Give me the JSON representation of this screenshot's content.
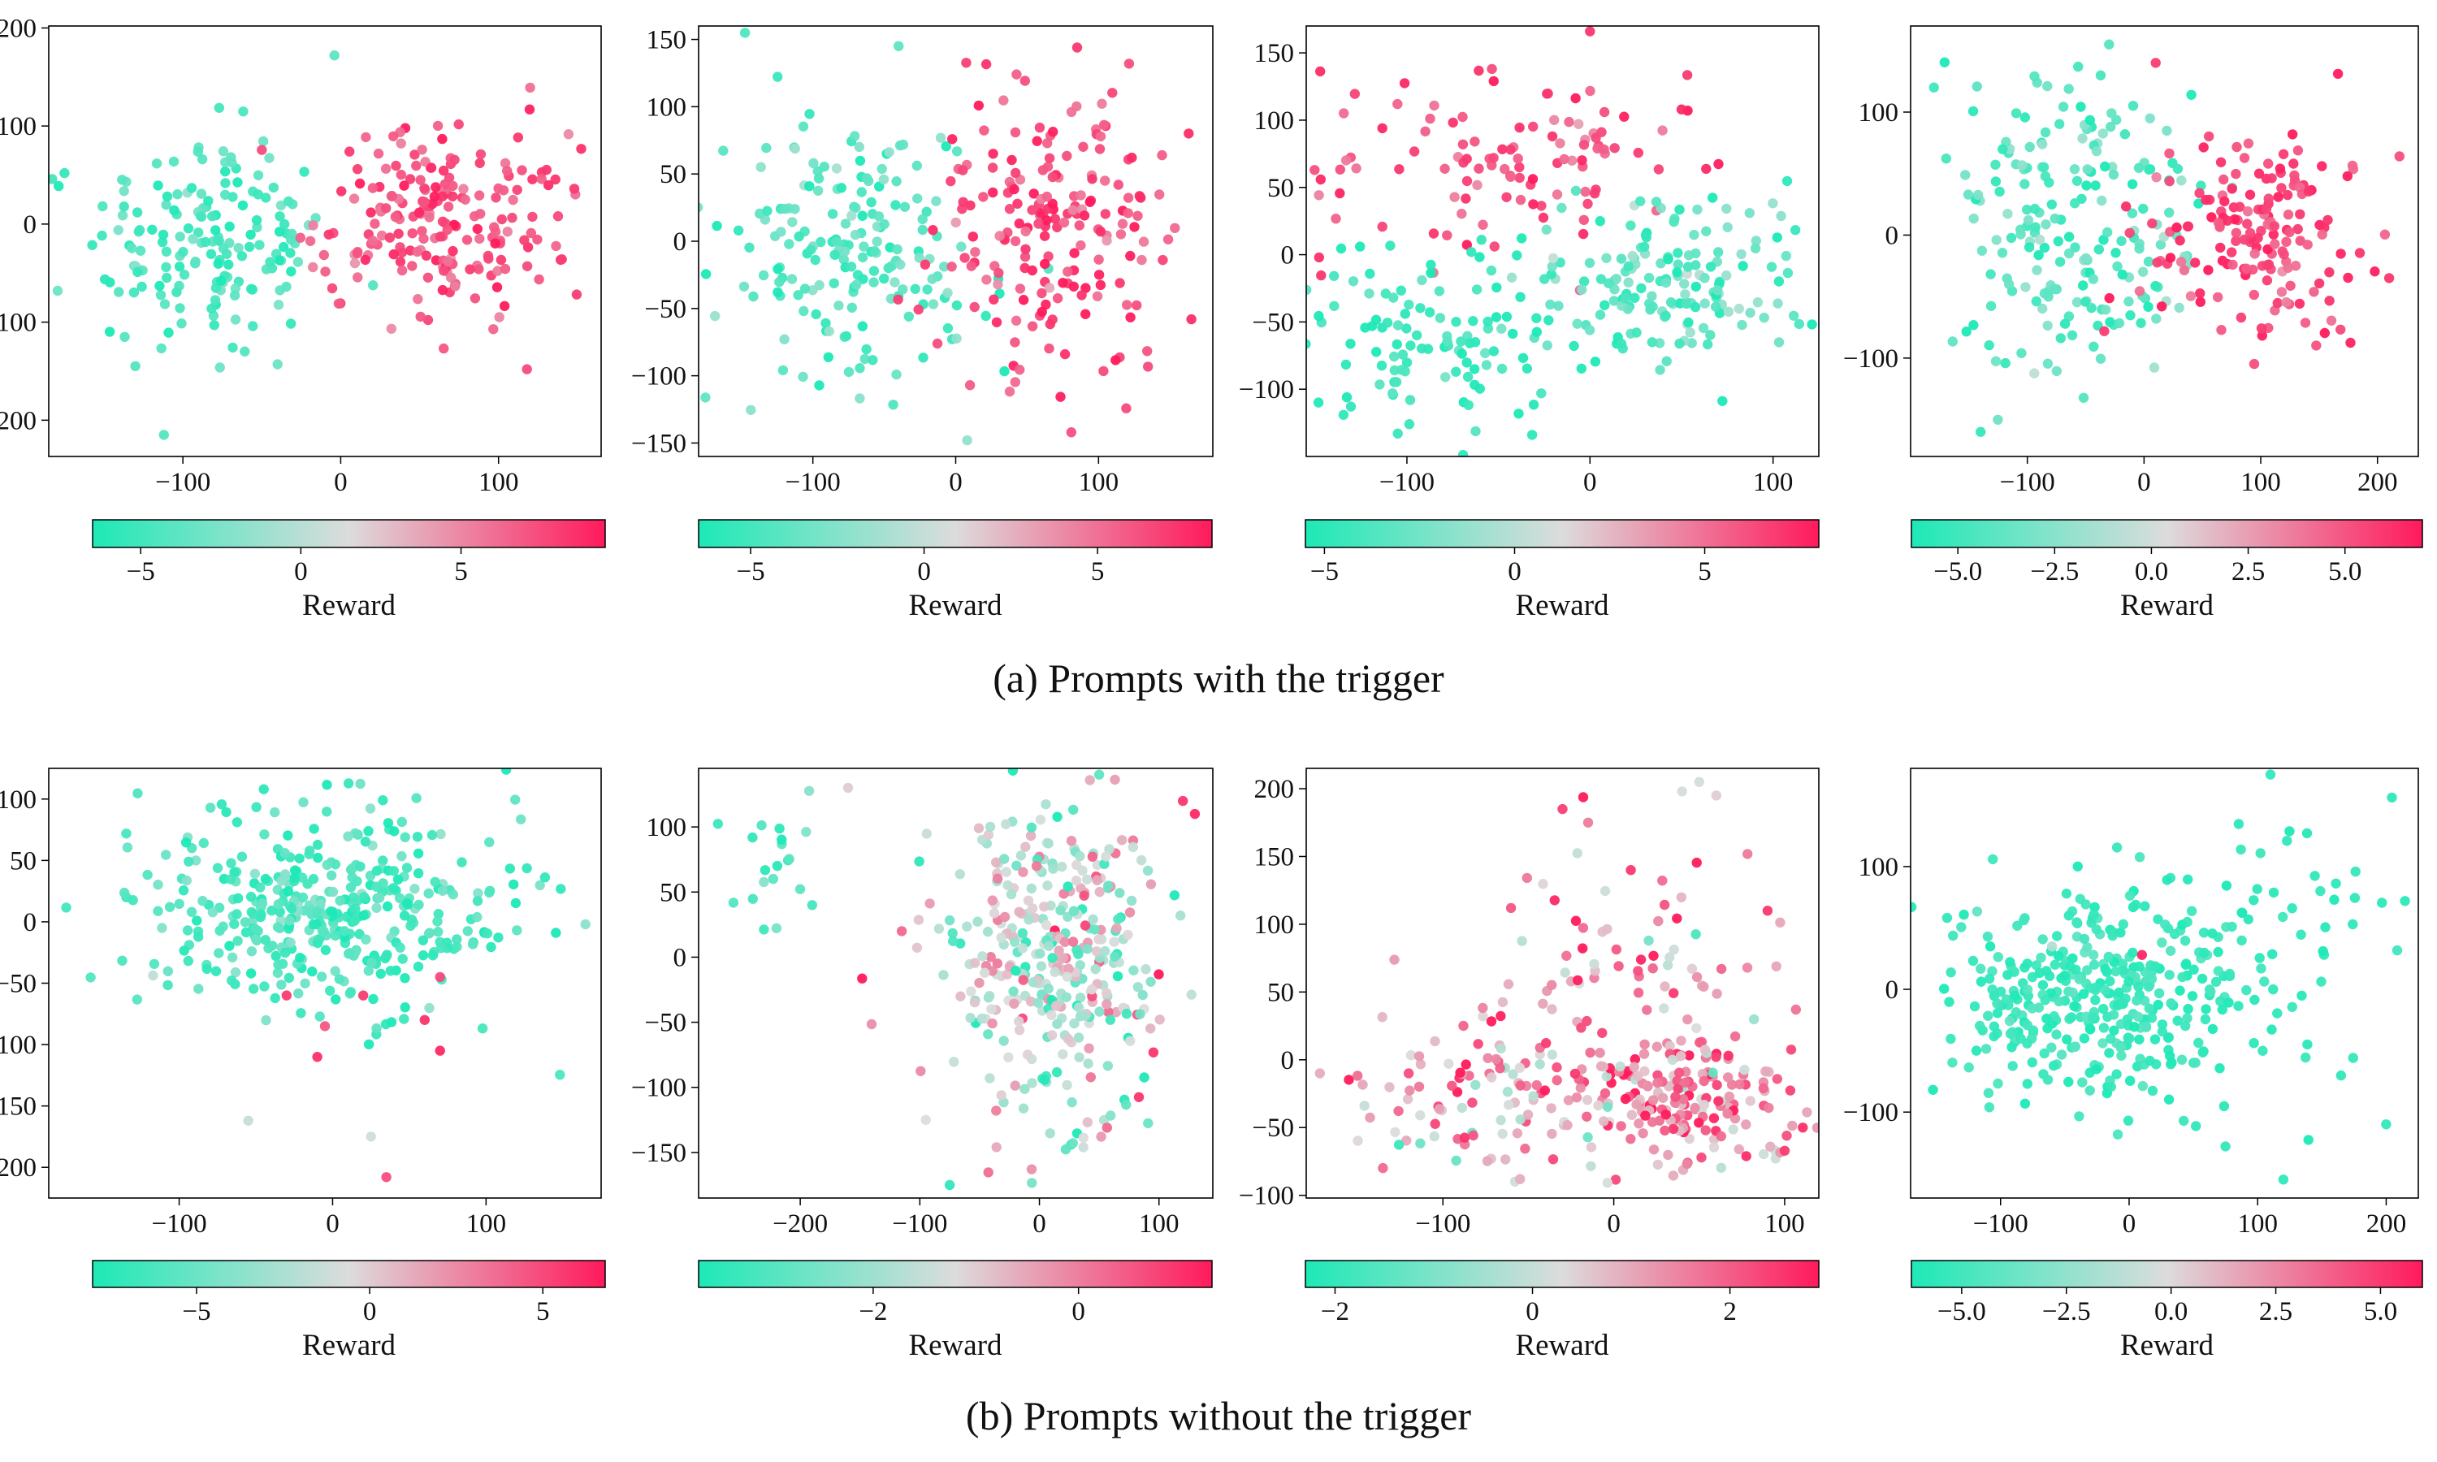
{
  "colormap": {
    "low": "#1de9b6",
    "mid": "#dcdcdc",
    "high": "#ff1a5c"
  },
  "captions": {
    "a": "(a) Prompts with the trigger",
    "b": "(b) Prompts without the trigger"
  },
  "chart_data": [
    {
      "type": "scatter",
      "group": "a",
      "xlim": [
        -185,
        165
      ],
      "ylim": [
        -237,
        202
      ],
      "xticks": [
        -100,
        0,
        100
      ],
      "yticks": [
        -200,
        -100,
        0,
        100,
        200
      ],
      "colorbar": {
        "label": "Reward",
        "range": [
          -6.5,
          9.5
        ],
        "ticks": [
          -5,
          0,
          5
        ]
      },
      "clusters": [
        {
          "n": 170,
          "center": [
            -85,
            -20
          ],
          "spread": [
            38,
            58
          ],
          "reward_mean": -4.6,
          "reward_sd": 1.2
        },
        {
          "n": 210,
          "center": [
            65,
            5
          ],
          "spread": [
            40,
            48
          ],
          "reward_mean": 7.2,
          "reward_sd": 1.1
        }
      ],
      "points": [
        [
          -175,
          52,
          -5.5
        ],
        [
          -112,
          -215,
          -4.2
        ],
        [
          -40,
          -143,
          -3.1
        ],
        [
          118,
          -148,
          7.5
        ],
        [
          148,
          36,
          8.1
        ],
        [
          -4,
          172,
          -3.8
        ]
      ]
    },
    {
      "type": "scatter",
      "group": "a",
      "xlim": [
        -180,
        180
      ],
      "ylim": [
        -160,
        160
      ],
      "xticks": [
        -100,
        0,
        100
      ],
      "yticks": [
        -150,
        -100,
        -50,
        0,
        50,
        100,
        150
      ],
      "colorbar": {
        "label": "Reward",
        "range": [
          -6.5,
          8.3
        ],
        "ticks": [
          -5,
          0,
          5
        ]
      },
      "clusters": [
        {
          "n": 190,
          "center": [
            -75,
            -10
          ],
          "spread": [
            48,
            55
          ],
          "reward_mean": -4.4,
          "reward_sd": 1.3
        },
        {
          "n": 190,
          "center": [
            70,
            10
          ],
          "spread": [
            45,
            55
          ],
          "reward_mean": 6.6,
          "reward_sd": 1.2
        }
      ],
      "points": [
        [
          8,
          -148,
          -2.0
        ],
        [
          10,
          -107,
          5.8
        ],
        [
          85,
          144,
          7.1
        ],
        [
          -40,
          145,
          -4.0
        ],
        [
          165,
          -58,
          7.5
        ]
      ]
    },
    {
      "type": "scatter",
      "group": "a",
      "xlim": [
        -155,
        125
      ],
      "ylim": [
        -150,
        170
      ],
      "xticks": [
        -100,
        0,
        100
      ],
      "yticks": [
        -100,
        -50,
        0,
        50,
        100,
        150
      ],
      "colorbar": {
        "label": "Reward",
        "range": [
          -5.5,
          8.0
        ],
        "ticks": [
          -5,
          0,
          5
        ]
      },
      "clusters": [
        {
          "n": 110,
          "center": [
            -45,
            75
          ],
          "spread": [
            50,
            38
          ],
          "reward_mean": 6.5,
          "reward_sd": 1.0
        },
        {
          "n": 180,
          "center": [
            40,
            -20
          ],
          "spread": [
            45,
            30
          ],
          "reward_mean": -3.5,
          "reward_sd": 1.6
        },
        {
          "n": 110,
          "center": [
            -90,
            -65
          ],
          "spread": [
            40,
            28
          ],
          "reward_mean": -4.6,
          "reward_sd": 1.0
        }
      ],
      "points": [
        [
          0,
          166,
          7.0
        ],
        [
          -148,
          -2,
          7.2
        ],
        [
          -105,
          -133,
          -4.5
        ],
        [
          50,
          108,
          7.4
        ]
      ]
    },
    {
      "type": "scatter",
      "group": "a",
      "xlim": [
        -200,
        235
      ],
      "ylim": [
        -180,
        170
      ],
      "xticks": [
        -100,
        0,
        100,
        200
      ],
      "yticks": [
        -100,
        0,
        100
      ],
      "colorbar": {
        "label": "Reward",
        "range": [
          -6.2,
          7.0
        ],
        "ticks": [
          -5.0,
          -2.5,
          0.0,
          2.5,
          5.0
        ]
      },
      "clusters": [
        {
          "n": 200,
          "center": [
            -60,
            20
          ],
          "spread": [
            55,
            65
          ],
          "reward_mean": -4.3,
          "reward_sd": 1.3
        },
        {
          "n": 170,
          "center": [
            100,
            0
          ],
          "spread": [
            50,
            45
          ],
          "reward_mean": 5.6,
          "reward_sd": 1.0
        }
      ],
      "points": [
        [
          -180,
          120,
          -5.0
        ],
        [
          -140,
          -160,
          -5.3
        ],
        [
          -30,
          155,
          -4.3
        ],
        [
          10,
          140,
          5.8
        ],
        [
          210,
          -35,
          6.0
        ]
      ]
    },
    {
      "type": "scatter",
      "group": "b",
      "xlim": [
        -185,
        175
      ],
      "ylim": [
        -225,
        125
      ],
      "xticks": [
        -100,
        0,
        100
      ],
      "yticks": [
        -200,
        -150,
        -100,
        -50,
        0,
        50,
        100
      ],
      "colorbar": {
        "label": "Reward",
        "range": [
          -8.0,
          6.8
        ],
        "ticks": [
          -5,
          0,
          5
        ]
      },
      "clusters": [
        {
          "n": 400,
          "center": [
            0,
            5
          ],
          "spread": [
            62,
            42
          ],
          "reward_mean": -6.4,
          "reward_sd": 1.3
        }
      ],
      "points": [
        [
          -30,
          -60,
          5.5
        ],
        [
          -10,
          -110,
          6.0
        ],
        [
          20,
          -60,
          5.5
        ],
        [
          70,
          -45,
          5.0
        ],
        [
          70,
          -105,
          6.2
        ],
        [
          35,
          -208,
          4.8
        ],
        [
          -55,
          -162,
          -1.5
        ],
        [
          60,
          -80,
          5.8
        ],
        [
          25,
          -175,
          -1.0
        ],
        [
          -5,
          -85,
          4.5
        ]
      ]
    },
    {
      "type": "scatter",
      "group": "b",
      "xlim": [
        -285,
        145
      ],
      "ylim": [
        -185,
        145
      ],
      "xticks": [
        -200,
        -100,
        0,
        100
      ],
      "yticks": [
        -150,
        -100,
        -50,
        0,
        50,
        100
      ],
      "colorbar": {
        "label": "Reward",
        "range": [
          -3.7,
          1.3
        ],
        "ticks": [
          -2,
          0
        ]
      },
      "clusters": [
        {
          "n": 360,
          "center": [
            10,
            0
          ],
          "spread": [
            45,
            55
          ],
          "reward_mean": -1.6,
          "reward_sd": 1.1
        },
        {
          "n": 20,
          "center": [
            -230,
            70
          ],
          "spread": [
            35,
            30
          ],
          "reward_mean": -3.0,
          "reward_sd": 0.4
        }
      ],
      "points": [
        [
          -160,
          130,
          -1.0
        ],
        [
          -95,
          -125,
          -1.2
        ],
        [
          -75,
          -175,
          -3.4
        ],
        [
          120,
          120,
          0.9
        ],
        [
          130,
          110,
          1.1
        ],
        [
          -190,
          40,
          -3.2
        ]
      ]
    },
    {
      "type": "scatter",
      "group": "b",
      "xlim": [
        -180,
        120
      ],
      "ylim": [
        -102,
        215
      ],
      "xticks": [
        -100,
        0,
        100
      ],
      "yticks": [
        -100,
        -50,
        0,
        50,
        100,
        150,
        200
      ],
      "colorbar": {
        "label": "Reward",
        "range": [
          -2.3,
          2.9
        ],
        "ticks": [
          -2,
          0,
          2
        ]
      },
      "clusters": [
        {
          "n": 170,
          "center": [
            50,
            -30
          ],
          "spread": [
            38,
            22
          ],
          "reward_mean": 1.4,
          "reward_sd": 0.9
        },
        {
          "n": 120,
          "center": [
            -60,
            -25
          ],
          "spread": [
            55,
            28
          ],
          "reward_mean": 1.0,
          "reward_sd": 1.1
        },
        {
          "n": 90,
          "center": [
            10,
            60
          ],
          "spread": [
            45,
            55
          ],
          "reward_mean": 1.2,
          "reward_sd": 1.0
        }
      ],
      "points": [
        [
          -30,
          185,
          2.4
        ],
        [
          -15,
          175,
          1.6
        ],
        [
          40,
          198,
          0.2
        ],
        [
          50,
          205,
          0.2
        ],
        [
          60,
          195,
          0.5
        ],
        [
          10,
          140,
          2.5
        ]
      ]
    },
    {
      "type": "scatter",
      "group": "b",
      "xlim": [
        -170,
        225
      ],
      "ylim": [
        -170,
        180
      ],
      "xticks": [
        -100,
        0,
        100,
        200
      ],
      "yticks": [
        -100,
        0,
        100
      ],
      "colorbar": {
        "label": "Reward",
        "range": [
          -6.2,
          6.0
        ],
        "ticks": [
          -5.0,
          -2.5,
          0.0,
          2.5,
          5.0
        ]
      },
      "clusters": [
        {
          "n": 350,
          "center": [
            -30,
            -5
          ],
          "spread": [
            55,
            45
          ],
          "reward_mean": -5.3,
          "reward_sd": 0.6
        },
        {
          "n": 70,
          "center": [
            100,
            30
          ],
          "spread": [
            55,
            75
          ],
          "reward_mean": -5.6,
          "reward_sd": 0.4
        }
      ],
      "points": [
        [
          10,
          28,
          5.6
        ],
        [
          -60,
          35,
          -1.5
        ],
        [
          110,
          175,
          -5.5
        ],
        [
          120,
          -155,
          -5.6
        ],
        [
          200,
          -110,
          -5.5
        ]
      ]
    }
  ]
}
